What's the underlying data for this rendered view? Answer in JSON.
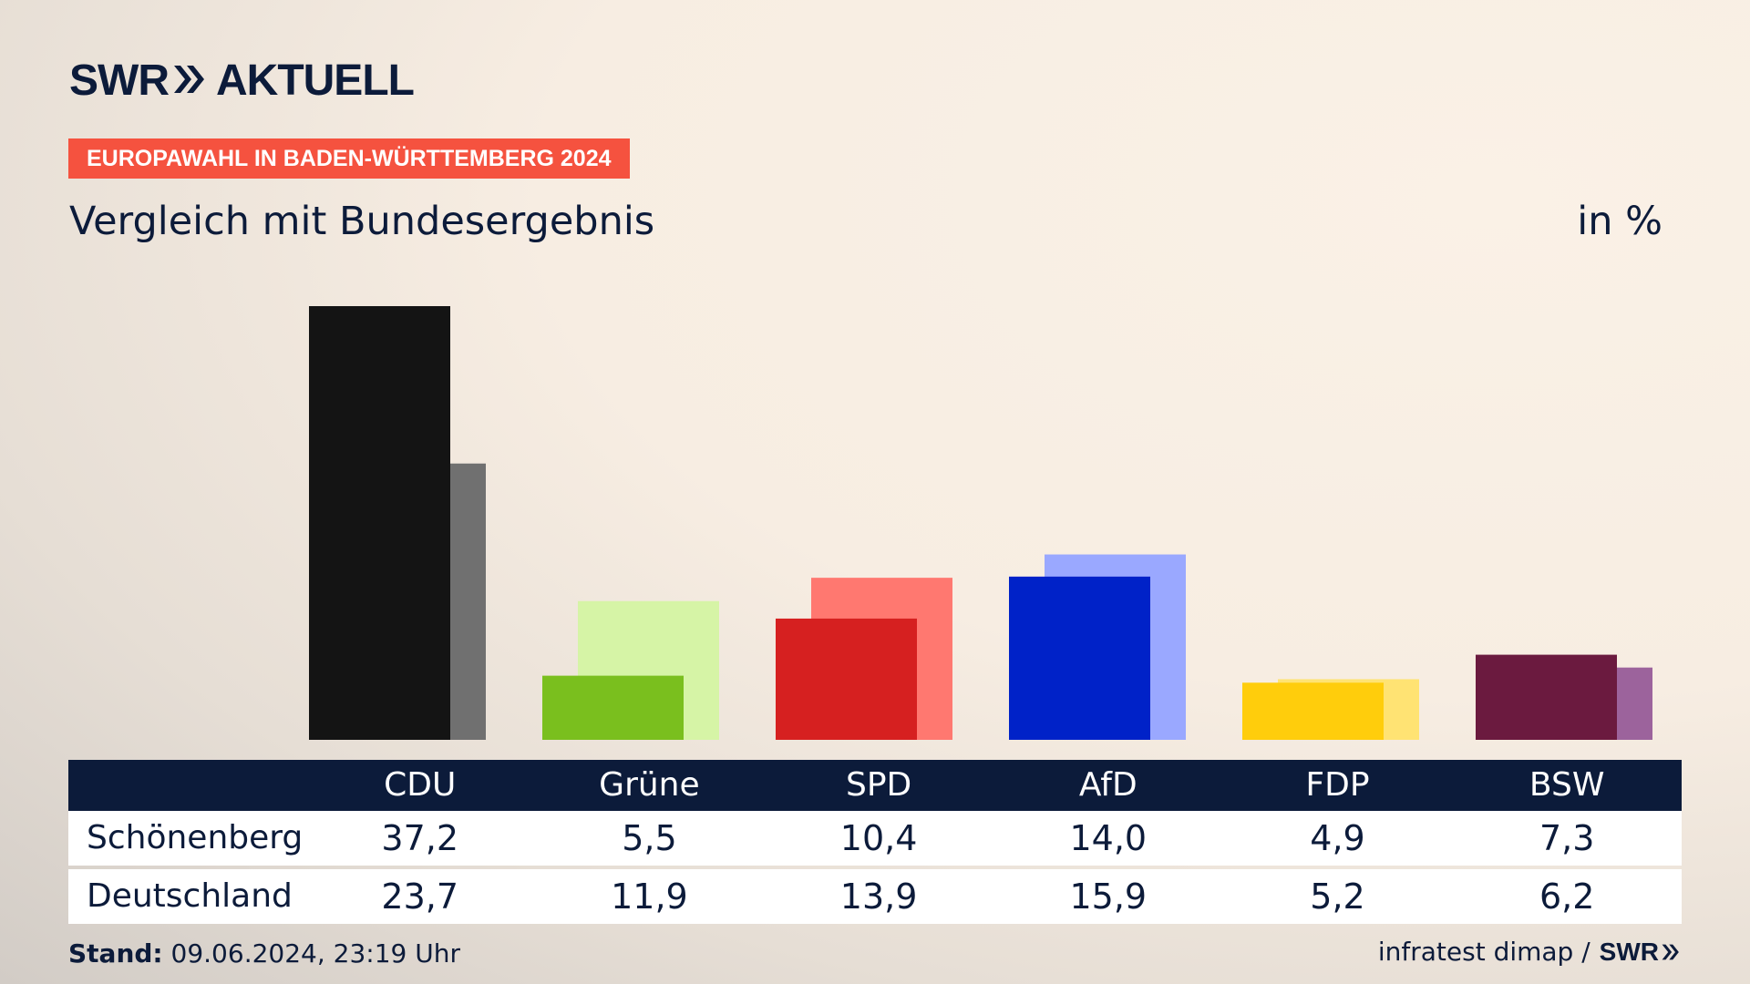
{
  "brand": {
    "logo_left": "SWR",
    "logo_right": "AKTUELL"
  },
  "tag": "EUROPAWAHL IN BADEN-WÜRTTEMBERG 2024",
  "subtitle": "Vergleich mit Bundesergebnis",
  "unit": "in %",
  "chart_data": {
    "type": "bar",
    "categories": [
      "CDU",
      "Grüne",
      "SPD",
      "AfD",
      "FDP",
      "BSW"
    ],
    "series": [
      {
        "name": "Schönenberg",
        "values": [
          37.2,
          5.5,
          10.4,
          14.0,
          4.9,
          7.3
        ]
      },
      {
        "name": "Deutschland",
        "values": [
          23.7,
          11.9,
          13.9,
          15.9,
          5.2,
          6.2
        ]
      }
    ],
    "ylim": [
      0,
      37.2
    ],
    "grid": false,
    "colors": {
      "primary": [
        "#141414",
        "#7abf1e",
        "#d62020",
        "#0022c8",
        "#ffcd0c",
        "#6b1a3f"
      ],
      "secondary": [
        "#707070",
        "#d6f4a6",
        "#ff7870",
        "#9aa8ff",
        "#ffe373",
        "#9c639c"
      ]
    }
  },
  "table": {
    "rows": [
      {
        "label": "Schönenberg",
        "values": [
          "37,2",
          "5,5",
          "10,4",
          "14,0",
          "4,9",
          "7,3"
        ]
      },
      {
        "label": "Deutschland",
        "values": [
          "23,7",
          "11,9",
          "13,9",
          "15,9",
          "5,2",
          "6,2"
        ]
      }
    ]
  },
  "footer": {
    "stand_label": "Stand:",
    "stand_value": "09.06.2024, 23:19 Uhr",
    "source": "infratest dimap /",
    "source_logo": "SWR"
  },
  "icons": {
    "logo_arrows": "double-chevron-right-icon"
  }
}
